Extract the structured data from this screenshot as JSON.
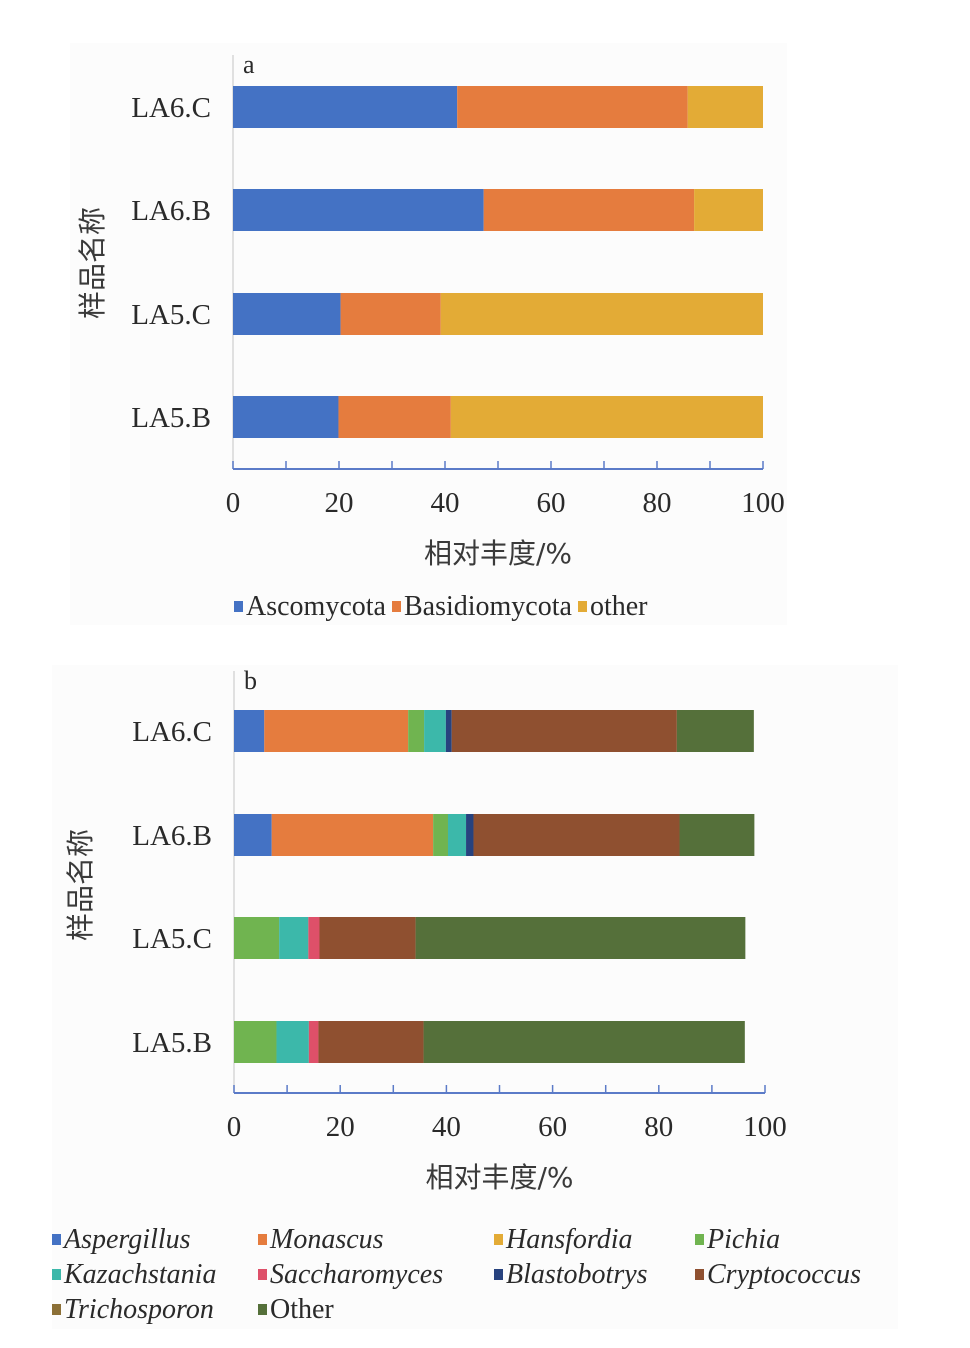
{
  "chart_data": [
    {
      "type": "bar",
      "orientation": "horizontal",
      "stacked": true,
      "panel_label": "a",
      "title": "",
      "ylabel": "样品名称",
      "xlabel": "相对丰度/%",
      "xlim": [
        0,
        100
      ],
      "xticks": [
        "0",
        "20",
        "40",
        "60",
        "80",
        "100"
      ],
      "categories": [
        "LA6.C",
        "LA6.B",
        "LA5.C",
        "LA5.B"
      ],
      "series": [
        {
          "name": "Ascomycota",
          "color": "#4472C4",
          "values": [
            42.3,
            47.3,
            20.3,
            19.9
          ]
        },
        {
          "name": "Basidiomycota",
          "color": "#E57C3E",
          "values": [
            43.5,
            39.7,
            18.9,
            21.2
          ]
        },
        {
          "name": "other",
          "color": "#E3AB36",
          "values": [
            14.2,
            13.0,
            60.8,
            58.9
          ]
        }
      ],
      "legend_position": "bottom"
    },
    {
      "type": "bar",
      "orientation": "horizontal",
      "stacked": true,
      "panel_label": "b",
      "title": "",
      "ylabel": "样品名称",
      "xlabel": "相对丰度/%",
      "xlim": [
        0,
        100
      ],
      "xticks": [
        "0",
        "20",
        "40",
        "60",
        "80",
        "100"
      ],
      "categories": [
        "LA6.C",
        "LA6.B",
        "LA5.C",
        "LA5.B"
      ],
      "series": [
        {
          "name": "Aspergillus",
          "italic": true,
          "color": "#4472C4",
          "values": [
            5.7,
            7.1,
            0,
            0
          ]
        },
        {
          "name": "Monascus",
          "italic": true,
          "color": "#E57C3E",
          "values": [
            27.1,
            30.4,
            0,
            0
          ]
        },
        {
          "name": "Hansfordia",
          "italic": true,
          "color": "#E3AB36",
          "values": [
            0,
            0,
            0,
            0
          ]
        },
        {
          "name": "Pichia",
          "italic": true,
          "color": "#70B450",
          "values": [
            3.0,
            2.8,
            8.5,
            8.0
          ]
        },
        {
          "name": "Kazachstania",
          "italic": true,
          "color": "#3CB8AA",
          "values": [
            4.1,
            3.4,
            5.5,
            6.1
          ]
        },
        {
          "name": "Saccharomyces",
          "italic": true,
          "color": "#DE5069",
          "values": [
            0,
            0,
            2.1,
            1.8
          ]
        },
        {
          "name": "Blastobotrys",
          "italic": true,
          "color": "#27427E",
          "values": [
            1.1,
            1.4,
            0,
            0
          ]
        },
        {
          "name": "Cryptococcus",
          "italic": true,
          "color": "#8F5030",
          "values": [
            42.4,
            38.8,
            18.1,
            19.8
          ]
        },
        {
          "name": "Trichosporon",
          "italic": true,
          "color": "#8C7037",
          "values": [
            0,
            0,
            0,
            0
          ]
        },
        {
          "name": "Other",
          "italic": false,
          "color": "#55703A",
          "values": [
            14.5,
            14.1,
            62.1,
            60.5
          ]
        }
      ],
      "legend_position": "bottom"
    }
  ]
}
